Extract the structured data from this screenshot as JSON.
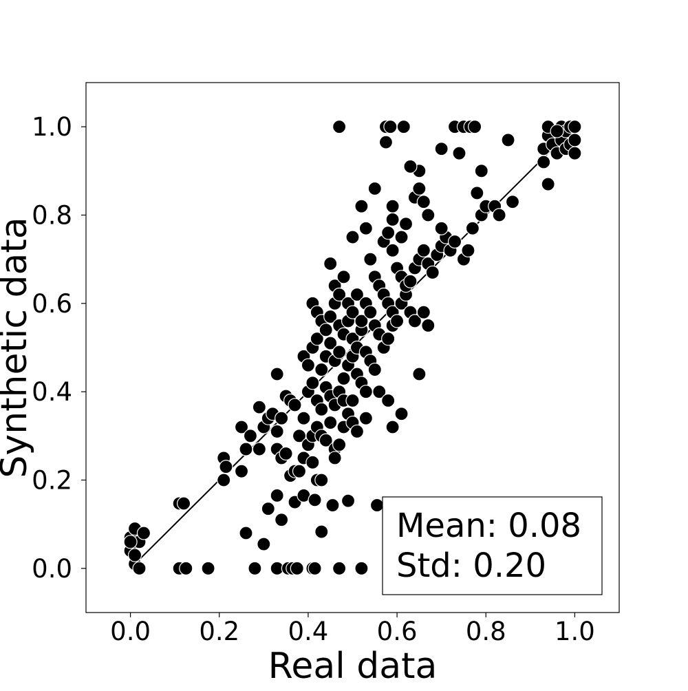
{
  "chart_data": {
    "type": "scatter",
    "title": "",
    "xlabel": "Real data",
    "ylabel": "Synthetic data",
    "xlim": [
      -0.1,
      1.1
    ],
    "ylim": [
      -0.1,
      1.1
    ],
    "xticks": [
      0.0,
      0.2,
      0.4,
      0.6,
      0.8,
      1.0
    ],
    "yticks": [
      0.0,
      0.2,
      0.4,
      0.6,
      0.8,
      1.0
    ],
    "xtick_labels": [
      "0.0",
      "0.2",
      "0.4",
      "0.6",
      "0.8",
      "1.0"
    ],
    "ytick_labels": [
      "0.0",
      "0.2",
      "0.4",
      "0.6",
      "0.8",
      "1.0"
    ],
    "grid": false,
    "marker_color": "#000000",
    "marker_edge_color": "#ffffff",
    "reference_line": {
      "x": [
        0.0,
        1.0
      ],
      "y": [
        0.0,
        1.0
      ],
      "color": "#000000"
    },
    "annotation": {
      "lines": [
        "Mean: 0.08",
        "Std: 0.20"
      ],
      "placement": "bottom-right"
    },
    "points": [
      [
        0.0,
        0.07
      ],
      [
        0.0,
        0.04
      ],
      [
        0.01,
        0.01
      ],
      [
        0.01,
        0.09
      ],
      [
        0.02,
        0.06
      ],
      [
        0.03,
        0.08
      ],
      [
        0.01,
        0.03
      ],
      [
        0.02,
        0.0
      ],
      [
        0.0,
        0.06
      ],
      [
        0.11,
        0.0
      ],
      [
        0.125,
        0.0
      ],
      [
        0.175,
        0.0
      ],
      [
        0.28,
        0.0
      ],
      [
        0.33,
        0.0
      ],
      [
        0.355,
        0.0
      ],
      [
        0.365,
        0.0
      ],
      [
        0.375,
        0.0
      ],
      [
        0.41,
        0.0
      ],
      [
        0.415,
        0.0
      ],
      [
        0.47,
        0.0
      ],
      [
        0.52,
        0.0
      ],
      [
        0.11,
        0.147
      ],
      [
        0.12,
        0.147
      ],
      [
        0.21,
        0.25
      ],
      [
        0.21,
        0.2
      ],
      [
        0.215,
        0.23
      ],
      [
        0.25,
        0.22
      ],
      [
        0.25,
        0.32
      ],
      [
        0.26,
        0.27
      ],
      [
        0.27,
        0.3
      ],
      [
        0.29,
        0.27
      ],
      [
        0.29,
        0.365
      ],
      [
        0.26,
        0.08
      ],
      [
        0.3,
        0.055
      ],
      [
        0.31,
        0.135
      ],
      [
        0.33,
        0.165
      ],
      [
        0.34,
        0.11
      ],
      [
        0.37,
        0.15
      ],
      [
        0.39,
        0.165
      ],
      [
        0.415,
        0.155
      ],
      [
        0.43,
        0.083
      ],
      [
        0.455,
        0.143
      ],
      [
        0.49,
        0.153
      ],
      [
        0.555,
        0.143
      ],
      [
        0.3,
        0.32
      ],
      [
        0.31,
        0.34
      ],
      [
        0.32,
        0.35
      ],
      [
        0.33,
        0.31
      ],
      [
        0.33,
        0.27
      ],
      [
        0.34,
        0.25
      ],
      [
        0.35,
        0.26
      ],
      [
        0.36,
        0.21
      ],
      [
        0.37,
        0.22
      ],
      [
        0.38,
        0.22
      ],
      [
        0.34,
        0.34
      ],
      [
        0.35,
        0.39
      ],
      [
        0.36,
        0.38
      ],
      [
        0.37,
        0.37
      ],
      [
        0.38,
        0.3
      ],
      [
        0.39,
        0.34
      ],
      [
        0.33,
        0.44
      ],
      [
        0.39,
        0.25
      ],
      [
        0.41,
        0.24
      ],
      [
        0.42,
        0.2
      ],
      [
        0.43,
        0.2
      ],
      [
        0.4,
        0.28
      ],
      [
        0.41,
        0.3
      ],
      [
        0.42,
        0.32
      ],
      [
        0.43,
        0.3
      ],
      [
        0.44,
        0.29
      ],
      [
        0.45,
        0.33
      ],
      [
        0.46,
        0.27
      ],
      [
        0.46,
        0.25
      ],
      [
        0.47,
        0.28
      ],
      [
        0.48,
        0.32
      ],
      [
        0.4,
        0.4
      ],
      [
        0.41,
        0.42
      ],
      [
        0.42,
        0.38
      ],
      [
        0.43,
        0.36
      ],
      [
        0.44,
        0.41
      ],
      [
        0.45,
        0.39
      ],
      [
        0.46,
        0.37
      ],
      [
        0.47,
        0.4
      ],
      [
        0.48,
        0.38
      ],
      [
        0.49,
        0.35
      ],
      [
        0.5,
        0.33
      ],
      [
        0.51,
        0.31
      ],
      [
        0.5,
        0.38
      ],
      [
        0.39,
        0.48
      ],
      [
        0.4,
        0.46
      ],
      [
        0.41,
        0.5
      ],
      [
        0.42,
        0.52
      ],
      [
        0.43,
        0.45
      ],
      [
        0.44,
        0.48
      ],
      [
        0.45,
        0.51
      ],
      [
        0.46,
        0.47
      ],
      [
        0.47,
        0.49
      ],
      [
        0.48,
        0.43
      ],
      [
        0.49,
        0.46
      ],
      [
        0.5,
        0.48
      ],
      [
        0.51,
        0.44
      ],
      [
        0.52,
        0.42
      ],
      [
        0.53,
        0.4
      ],
      [
        0.41,
        0.6
      ],
      [
        0.42,
        0.58
      ],
      [
        0.43,
        0.56
      ],
      [
        0.44,
        0.54
      ],
      [
        0.45,
        0.57
      ],
      [
        0.46,
        0.6
      ],
      [
        0.47,
        0.55
      ],
      [
        0.48,
        0.53
      ],
      [
        0.49,
        0.56
      ],
      [
        0.5,
        0.52
      ],
      [
        0.51,
        0.5
      ],
      [
        0.52,
        0.54
      ],
      [
        0.53,
        0.49
      ],
      [
        0.54,
        0.47
      ],
      [
        0.55,
        0.45
      ],
      [
        0.45,
        0.69
      ],
      [
        0.46,
        0.64
      ],
      [
        0.47,
        0.62
      ],
      [
        0.48,
        0.66
      ],
      [
        0.49,
        0.6
      ],
      [
        0.5,
        0.58
      ],
      [
        0.51,
        0.62
      ],
      [
        0.52,
        0.56
      ],
      [
        0.53,
        0.6
      ],
      [
        0.54,
        0.58
      ],
      [
        0.55,
        0.55
      ],
      [
        0.56,
        0.53
      ],
      [
        0.57,
        0.5
      ],
      [
        0.58,
        0.52
      ],
      [
        0.59,
        0.55
      ],
      [
        0.5,
        0.75
      ],
      [
        0.52,
        0.82
      ],
      [
        0.53,
        0.77
      ],
      [
        0.54,
        0.7
      ],
      [
        0.55,
        0.66
      ],
      [
        0.56,
        0.64
      ],
      [
        0.57,
        0.62
      ],
      [
        0.58,
        0.6
      ],
      [
        0.59,
        0.58
      ],
      [
        0.6,
        0.56
      ],
      [
        0.61,
        0.6
      ],
      [
        0.62,
        0.62
      ],
      [
        0.63,
        0.58
      ],
      [
        0.64,
        0.56
      ],
      [
        0.55,
        0.86
      ],
      [
        0.57,
        0.74
      ],
      [
        0.58,
        0.76
      ],
      [
        0.59,
        0.72
      ],
      [
        0.6,
        0.68
      ],
      [
        0.61,
        0.66
      ],
      [
        0.62,
        0.64
      ],
      [
        0.63,
        0.65
      ],
      [
        0.64,
        0.68
      ],
      [
        0.65,
        0.7
      ],
      [
        0.66,
        0.72
      ],
      [
        0.67,
        0.69
      ],
      [
        0.68,
        0.67
      ],
      [
        0.69,
        0.71
      ],
      [
        0.7,
        0.73
      ],
      [
        0.71,
        0.75
      ],
      [
        0.59,
        0.79
      ],
      [
        0.59,
        0.82
      ],
      [
        0.61,
        0.75
      ],
      [
        0.62,
        0.78
      ],
      [
        0.64,
        0.84
      ],
      [
        0.65,
        0.9
      ],
      [
        0.65,
        0.86
      ],
      [
        0.66,
        0.83
      ],
      [
        0.67,
        0.8
      ],
      [
        0.7,
        0.77
      ],
      [
        0.72,
        0.72
      ],
      [
        0.73,
        0.74
      ],
      [
        0.75,
        0.7
      ],
      [
        0.76,
        0.72
      ],
      [
        0.77,
        0.77
      ],
      [
        0.78,
        0.85
      ],
      [
        0.79,
        0.8
      ],
      [
        0.8,
        0.82
      ],
      [
        0.79,
        0.9
      ],
      [
        0.82,
        0.82
      ],
      [
        0.83,
        0.8
      ],
      [
        0.86,
        0.83
      ],
      [
        0.74,
        0.94
      ],
      [
        0.7,
        0.95
      ],
      [
        0.85,
        0.97
      ],
      [
        0.63,
        0.91
      ],
      [
        0.53,
        0.34
      ],
      [
        0.56,
        0.4
      ],
      [
        0.58,
        0.38
      ],
      [
        0.59,
        0.32
      ],
      [
        0.61,
        0.35
      ],
      [
        0.65,
        0.44
      ],
      [
        0.67,
        0.55
      ],
      [
        0.66,
        0.58
      ],
      [
        0.47,
        1.0
      ],
      [
        0.575,
        1.0
      ],
      [
        0.585,
        1.0
      ],
      [
        0.615,
        1.0
      ],
      [
        0.73,
        1.0
      ],
      [
        0.75,
        1.0
      ],
      [
        0.765,
        1.0
      ],
      [
        0.775,
        1.0
      ],
      [
        0.575,
        0.965
      ],
      [
        0.93,
        0.92
      ],
      [
        0.93,
        0.95
      ],
      [
        0.94,
        0.98
      ],
      [
        0.94,
        1.0
      ],
      [
        0.95,
        0.96
      ],
      [
        0.96,
        0.94
      ],
      [
        0.97,
        0.97
      ],
      [
        0.97,
        1.0
      ],
      [
        0.98,
        0.95
      ],
      [
        0.98,
        0.99
      ],
      [
        0.99,
        0.96
      ],
      [
        0.99,
        1.0
      ],
      [
        1.0,
        0.94
      ],
      [
        1.0,
        0.97
      ],
      [
        1.0,
        1.0
      ],
      [
        0.96,
        0.99
      ],
      [
        0.94,
        0.87
      ]
    ]
  }
}
